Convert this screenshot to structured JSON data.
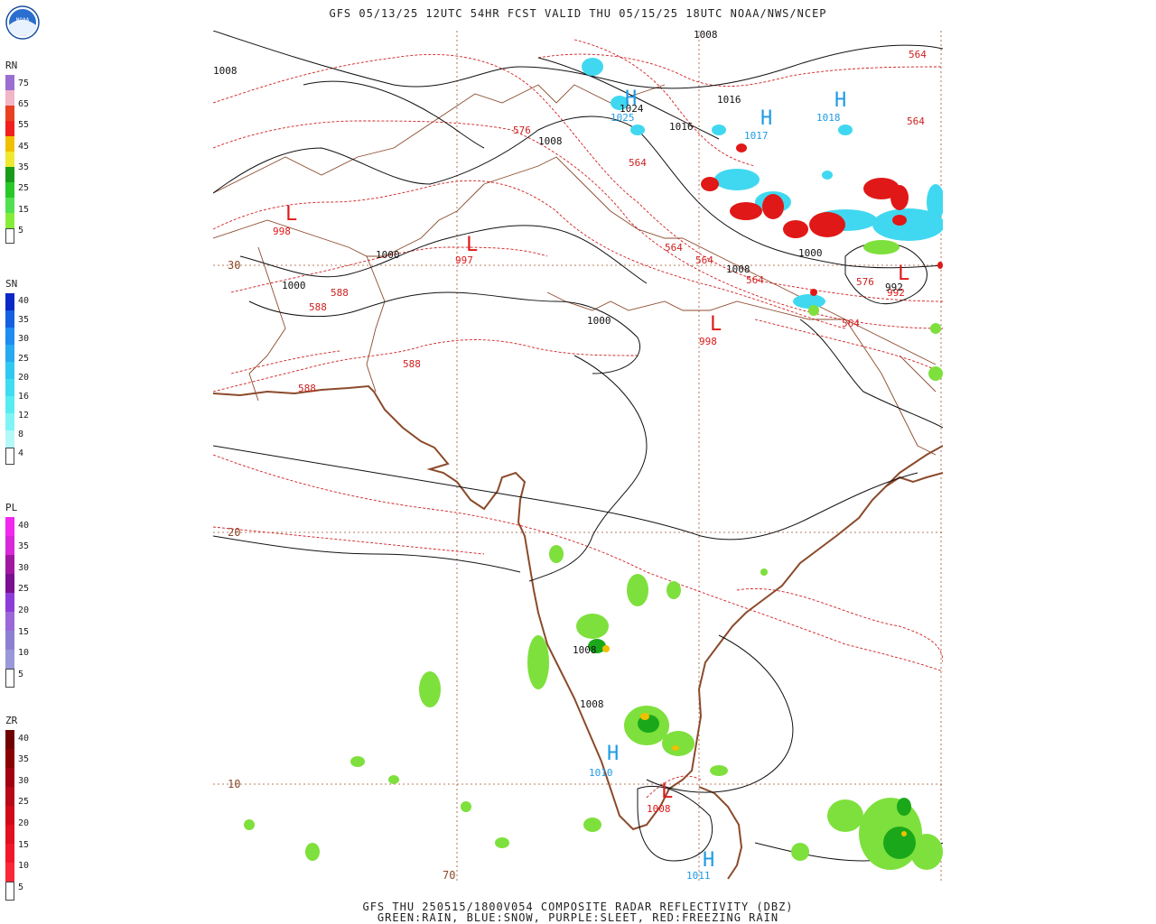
{
  "header": {
    "title": "GFS 05/13/25 12UTC 54HR FCST VALID THU 05/15/25 18UTC NOAA/NWS/NCEP"
  },
  "footer": {
    "line1": "GFS THU 250515/1800V054 COMPOSITE RADAR REFLECTIVITY (DBZ)",
    "line2": "GREEN:RAIN, BLUE:SNOW, PURPLE:SLEET, RED:FREEZING RAIN"
  },
  "logo": {
    "label": "NOAA"
  },
  "legends": [
    {
      "title": "RN",
      "labels": [
        "75",
        "65",
        "55",
        "45",
        "35",
        "25",
        "15",
        "5"
      ],
      "colors": [
        "#9a6fd0",
        "#f2b6c6",
        "#e84020",
        "#f02020",
        "#f0c000",
        "#f0e830",
        "#1a9a1a",
        "#28c828",
        "#50e050",
        "#86ec3a",
        "#ffffff"
      ]
    },
    {
      "title": "SN",
      "labels": [
        "40",
        "35",
        "30",
        "25",
        "20",
        "16",
        "12",
        "8",
        "4"
      ],
      "colors": [
        "#0a28c8",
        "#1460e0",
        "#1e8cf0",
        "#28aaf0",
        "#30c8f0",
        "#40dcf0",
        "#58ecf0",
        "#80f4f4",
        "#b4f8f8",
        "#ffffff"
      ]
    },
    {
      "title": "PL",
      "labels": [
        "40",
        "35",
        "30",
        "25",
        "20",
        "15",
        "10",
        "5"
      ],
      "colors": [
        "#f028f0",
        "#d828d8",
        "#a018a0",
        "#7a1090",
        "#8e3cd8",
        "#9a68d8",
        "#8e80d0",
        "#9a98d8",
        "#ffffff"
      ]
    },
    {
      "title": "ZR",
      "labels": [
        "40",
        "35",
        "30",
        "25",
        "20",
        "15",
        "10",
        "5"
      ],
      "colors": [
        "#700000",
        "#8a0000",
        "#a00010",
        "#b80818",
        "#d00818",
        "#e01020",
        "#f01828",
        "#f82838",
        "#ffffff"
      ]
    }
  ],
  "map": {
    "lat_labels": [
      "30",
      "20",
      "10"
    ],
    "lon_labels": [
      "70"
    ],
    "pressure_centers": [
      {
        "letter": "H",
        "value": "1025"
      },
      {
        "letter": "H",
        "value": "1017"
      },
      {
        "letter": "H",
        "value": "1018"
      },
      {
        "letter": "L",
        "value": "998"
      },
      {
        "letter": "L",
        "value": "997"
      },
      {
        "letter": "L",
        "value": "998"
      },
      {
        "letter": "L",
        "value": "992"
      },
      {
        "letter": "H",
        "value": "1010"
      },
      {
        "letter": "L",
        "value": "1008"
      },
      {
        "letter": "H",
        "value": "1011"
      }
    ],
    "isobar_labels": [
      "1008",
      "1024",
      "1016",
      "1016",
      "1008",
      "1000",
      "1000",
      "1008",
      "1000",
      "1000",
      "1008",
      "1008",
      "992",
      "1008"
    ],
    "thickness_labels": [
      "576",
      "564",
      "564",
      "564",
      "564",
      "564",
      "588",
      "588",
      "588",
      "588",
      "576",
      "564",
      "564"
    ],
    "colors": {
      "coast": "#8b4a2b",
      "thickness": "#d02020",
      "isobar": "#111111",
      "high": "#1e9be6",
      "low": "#e01818",
      "grid": "#a0522d",
      "rain": "#7ee03c",
      "rain_heavy": "#1aa81a",
      "snow": "#40d8f0",
      "freezing": "#e01818"
    }
  }
}
